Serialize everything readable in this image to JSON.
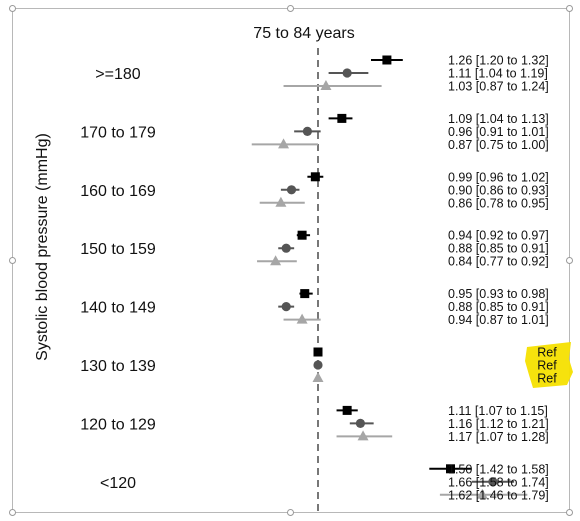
{
  "chart_data": {
    "type": "forest",
    "title": "75 to 84 years",
    "ylabel": "Systolic blood pressure (mmHg)",
    "reference_value": 1.0,
    "xlim": [
      0.7,
      1.85
    ],
    "x_axis_visible": false,
    "grid": false,
    "series": [
      {
        "marker": "square",
        "color": "#000000"
      },
      {
        "marker": "circle",
        "color": "#555555"
      },
      {
        "marker": "triangle",
        "color": "#a6a6a6"
      }
    ],
    "groups": [
      {
        "label": ">=180",
        "rows": [
          {
            "est": 1.26,
            "lo": 1.2,
            "hi": 1.32,
            "text": "1.26 [1.20 to 1.32]"
          },
          {
            "est": 1.11,
            "lo": 1.04,
            "hi": 1.19,
            "text": "1.11 [1.04 to 1.19]"
          },
          {
            "est": 1.03,
            "lo": 0.87,
            "hi": 1.24,
            "text": "1.03 [0.87 to 1.24]"
          }
        ]
      },
      {
        "label": "170 to 179",
        "rows": [
          {
            "est": 1.09,
            "lo": 1.04,
            "hi": 1.13,
            "text": "1.09 [1.04 to 1.13]"
          },
          {
            "est": 0.96,
            "lo": 0.91,
            "hi": 1.01,
            "text": "0.96 [0.91 to 1.01]"
          },
          {
            "est": 0.87,
            "lo": 0.75,
            "hi": 1.0,
            "text": "0.87 [0.75 to 1.00]"
          }
        ]
      },
      {
        "label": "160 to 169",
        "rows": [
          {
            "est": 0.99,
            "lo": 0.96,
            "hi": 1.02,
            "text": "0.99 [0.96 to 1.02]"
          },
          {
            "est": 0.9,
            "lo": 0.86,
            "hi": 0.93,
            "text": "0.90 [0.86 to 0.93]"
          },
          {
            "est": 0.86,
            "lo": 0.78,
            "hi": 0.95,
            "text": "0.86 [0.78 to 0.95]"
          }
        ]
      },
      {
        "label": "150 to 159",
        "rows": [
          {
            "est": 0.94,
            "lo": 0.92,
            "hi": 0.97,
            "text": "0.94 [0.92 to 0.97]"
          },
          {
            "est": 0.88,
            "lo": 0.85,
            "hi": 0.91,
            "text": "0.88 [0.85 to 0.91]"
          },
          {
            "est": 0.84,
            "lo": 0.77,
            "hi": 0.92,
            "text": "0.84 [0.77 to 0.92]"
          }
        ]
      },
      {
        "label": "140 to 149",
        "rows": [
          {
            "est": 0.95,
            "lo": 0.93,
            "hi": 0.98,
            "text": "0.95 [0.93 to 0.98]"
          },
          {
            "est": 0.88,
            "lo": 0.85,
            "hi": 0.91,
            "text": "0.88 [0.85 to 0.91]"
          },
          {
            "est": 0.94,
            "lo": 0.87,
            "hi": 1.01,
            "text": "0.94 [0.87 to 1.01]"
          }
        ]
      },
      {
        "label": "130 to 139",
        "rows": [
          {
            "est": 1.0,
            "lo": 1.0,
            "hi": 1.0,
            "text": "Ref"
          },
          {
            "est": 1.0,
            "lo": 1.0,
            "hi": 1.0,
            "text": "Ref"
          },
          {
            "est": 1.0,
            "lo": 1.0,
            "hi": 1.0,
            "text": "Ref"
          }
        ]
      },
      {
        "label": "120 to 129",
        "rows": [
          {
            "est": 1.11,
            "lo": 1.07,
            "hi": 1.15,
            "text": "1.11 [1.07 to 1.15]"
          },
          {
            "est": 1.16,
            "lo": 1.12,
            "hi": 1.21,
            "text": "1.16 [1.12 to 1.21]"
          },
          {
            "est": 1.17,
            "lo": 1.07,
            "hi": 1.28,
            "text": "1.17 [1.07 to 1.28]"
          }
        ]
      },
      {
        "label": "<120",
        "rows": [
          {
            "est": 1.5,
            "lo": 1.42,
            "hi": 1.58,
            "text": "1.50 [1.42 to 1.58]"
          },
          {
            "est": 1.66,
            "lo": 1.58,
            "hi": 1.74,
            "text": "1.66 [1.58 to 1.74]"
          },
          {
            "est": 1.62,
            "lo": 1.46,
            "hi": 1.79,
            "text": "1.62 [1.46 to 1.79]"
          }
        ]
      }
    ],
    "highlight_color": "#f5e000"
  }
}
